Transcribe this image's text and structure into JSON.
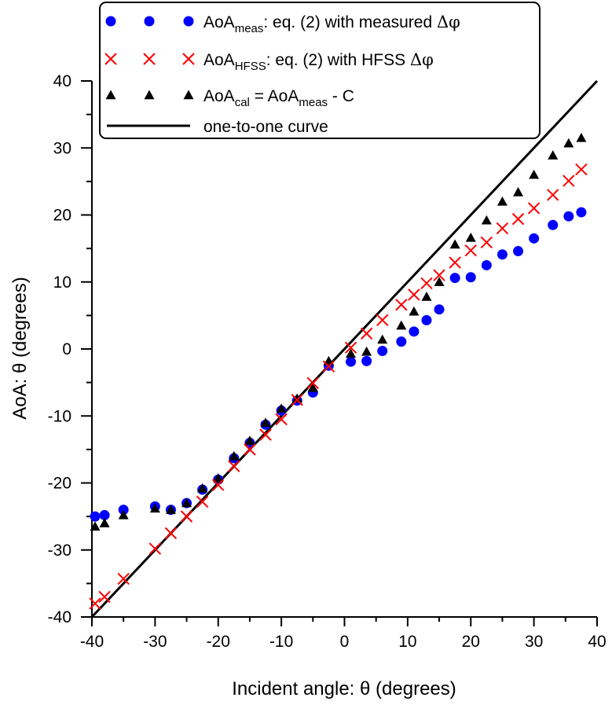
{
  "chart_data": {
    "type": "scatter",
    "xlabel": "Incident angle: θ (degrees)",
    "ylabel": "AoA: θ (degrees)",
    "xlim": [
      -40,
      40
    ],
    "ylim": [
      -40,
      40
    ],
    "x_ticks": [
      -40,
      -30,
      -20,
      -10,
      0,
      10,
      20,
      30,
      40
    ],
    "y_ticks": [
      -40,
      -30,
      -20,
      -10,
      0,
      10,
      20,
      30,
      40
    ],
    "x_tick_labels": [
      "-40",
      "-30",
      "-20",
      "-10",
      "0",
      "10",
      "20",
      "30",
      "40"
    ],
    "y_tick_labels": [
      "-40",
      "-30",
      "-20",
      "-10",
      "0",
      "10",
      "20",
      "30",
      "40"
    ],
    "legend_position": "top-left",
    "series": [
      {
        "name": "AoAmeas: eq. (2) with measured Δφ",
        "marker": "circle",
        "color": "#0000ff",
        "legend": {
          "base": "AoA",
          "sub": "meas",
          "rest": ": eq. (2) with measured ",
          "symbol": "Δφ"
        },
        "points": [
          [
            -39.5,
            -25
          ],
          [
            -38,
            -24.8
          ],
          [
            -35,
            -24
          ],
          [
            -30,
            -23.5
          ],
          [
            -27.5,
            -24
          ],
          [
            -25,
            -23
          ],
          [
            -22.5,
            -21
          ],
          [
            -20,
            -19.5
          ],
          [
            -17.5,
            -16.3
          ],
          [
            -15,
            -14
          ],
          [
            -12.5,
            -11.3
          ],
          [
            -10,
            -9.2
          ],
          [
            -7.5,
            -7.7
          ],
          [
            -5,
            -6.5
          ],
          [
            -2.5,
            -2.5
          ],
          [
            1,
            -1.9
          ],
          [
            3.5,
            -1.8
          ],
          [
            6,
            -0.3
          ],
          [
            9,
            1.1
          ],
          [
            11,
            2.6
          ],
          [
            13,
            4.3
          ],
          [
            15,
            5.9
          ],
          [
            17.5,
            10.6
          ],
          [
            20,
            10.7
          ],
          [
            22.5,
            12.5
          ],
          [
            25,
            14.1
          ],
          [
            27.5,
            14.6
          ],
          [
            30,
            16.5
          ],
          [
            33,
            18.5
          ],
          [
            35.5,
            19.8
          ],
          [
            37.5,
            20.4
          ]
        ]
      },
      {
        "name": "AoAHFSS: eq. (2) with HFSS Δφ",
        "marker": "x",
        "color": "#ff0000",
        "legend": {
          "base": "AoA",
          "sub": "HFSS",
          "rest": ": eq. (2) with HFSS ",
          "symbol": "Δφ"
        },
        "points": [
          [
            -39.5,
            -38
          ],
          [
            -38,
            -37
          ],
          [
            -35,
            -34.3
          ],
          [
            -30,
            -29.8
          ],
          [
            -27.5,
            -27.5
          ],
          [
            -25,
            -25
          ],
          [
            -22.5,
            -22.8
          ],
          [
            -20,
            -20.3
          ],
          [
            -17.5,
            -17.5
          ],
          [
            -15,
            -15
          ],
          [
            -12.5,
            -12.8
          ],
          [
            -10,
            -10.5
          ],
          [
            -7.5,
            -7.6
          ],
          [
            -5,
            -5.1
          ],
          [
            -2.5,
            -2.6
          ],
          [
            1,
            0.2
          ],
          [
            3.5,
            2.3
          ],
          [
            6,
            4.3
          ],
          [
            9,
            6.6
          ],
          [
            11,
            8.1
          ],
          [
            13,
            9.8
          ],
          [
            15,
            11
          ],
          [
            17.5,
            12.9
          ],
          [
            20,
            14.7
          ],
          [
            22.5,
            15.9
          ],
          [
            25,
            18
          ],
          [
            27.5,
            19.4
          ],
          [
            30,
            21
          ],
          [
            33,
            23
          ],
          [
            35.5,
            25.1
          ],
          [
            37.5,
            26.8
          ]
        ]
      },
      {
        "name": "AoAcal = AoAmeas - C",
        "marker": "triangle",
        "color": "#000000",
        "legend": {
          "base": "AoA",
          "sub": "cal",
          "rest": " = AoA",
          "sub2": "meas",
          "rest2": " - C"
        },
        "points": [
          [
            -39.5,
            -26.5
          ],
          [
            -38,
            -26
          ],
          [
            -35,
            -24.8
          ],
          [
            -30,
            -23.8
          ],
          [
            -27.5,
            -24
          ],
          [
            -25,
            -23
          ],
          [
            -22.5,
            -20.8
          ],
          [
            -20,
            -19.3
          ],
          [
            -17.5,
            -16
          ],
          [
            -15,
            -13.7
          ],
          [
            -12.5,
            -11
          ],
          [
            -10,
            -8.9
          ],
          [
            -7.5,
            -7.4
          ],
          [
            -5,
            -5.8
          ],
          [
            -2.5,
            -1.8
          ],
          [
            1,
            -0.7
          ],
          [
            3.5,
            -0.4
          ],
          [
            6,
            1.4
          ],
          [
            9,
            3.5
          ],
          [
            11,
            5.6
          ],
          [
            13,
            7.8
          ],
          [
            15,
            10
          ],
          [
            17.5,
            15.6
          ],
          [
            20,
            16.6
          ],
          [
            22.5,
            19.2
          ],
          [
            25,
            22
          ],
          [
            27.5,
            23.4
          ],
          [
            30,
            26
          ],
          [
            33,
            28.9
          ],
          [
            35.5,
            30.7
          ],
          [
            37.5,
            31.5
          ]
        ]
      },
      {
        "name": "one-to-one curve",
        "marker": "line",
        "color": "#000000",
        "legend": {
          "base": "one-to-one curve"
        },
        "points": [
          [
            -40,
            -40
          ],
          [
            40,
            40
          ]
        ]
      }
    ]
  }
}
